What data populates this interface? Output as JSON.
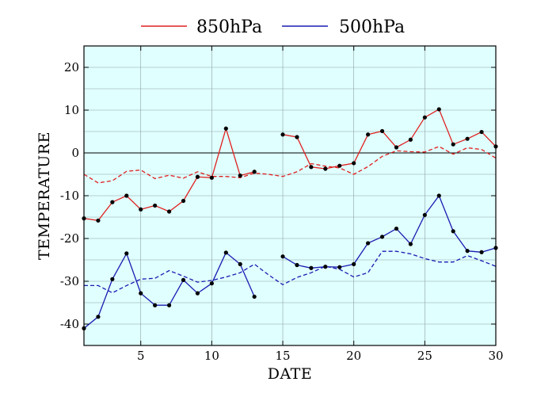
{
  "chart_data": {
    "type": "line",
    "xlabel": "DATE",
    "ylabel": "TEMPERATURE",
    "xlim": [
      1,
      30
    ],
    "ylim": [
      -45,
      25
    ],
    "xticks": [
      5,
      10,
      15,
      20,
      25,
      30
    ],
    "yticks": [
      -40,
      -30,
      -20,
      -10,
      0,
      10,
      20
    ],
    "grid": true,
    "zero_line": true,
    "background_color": "#e0ffff",
    "legend_position": "top-center",
    "x": [
      1,
      2,
      3,
      4,
      5,
      6,
      7,
      8,
      9,
      10,
      11,
      12,
      13,
      14,
      15,
      16,
      17,
      18,
      19,
      20,
      21,
      22,
      23,
      24,
      25,
      26,
      27,
      28,
      29,
      30
    ],
    "series": [
      {
        "name": "850hPa",
        "color": "#e02020",
        "style": "solid",
        "markers": true,
        "values": [
          -15.3,
          -15.8,
          -11.5,
          -10,
          -13.2,
          -12.3,
          -13.7,
          -11.2,
          -5.6,
          -5.8,
          5.7,
          -5.3,
          -4.4,
          null,
          4.3,
          3.7,
          -3.3,
          -3.7,
          -3,
          -2.4,
          4.3,
          5.1,
          1.3,
          3.1,
          8.3,
          10.2,
          2,
          3.3,
          4.9,
          1.5
        ]
      },
      {
        "name": "",
        "color": "#e02020",
        "style": "dashed",
        "markers": false,
        "values": [
          -5,
          -7,
          -6.5,
          -4.3,
          -4,
          -6,
          -5.2,
          -5.9,
          -4.4,
          -5.5,
          -5.5,
          -5.8,
          -4.7,
          -5,
          -5.5,
          -4.4,
          -2.5,
          -3.1,
          -3.5,
          -5,
          -3.2,
          -0.8,
          0.5,
          0.3,
          0.2,
          1.5,
          -0.3,
          1.2,
          0.8,
          -1.2
        ]
      },
      {
        "name": "500hPa",
        "color": "#1a1ab0",
        "style": "solid",
        "markers": true,
        "values": [
          -41,
          -38.3,
          -29.5,
          -23.5,
          -32.8,
          -35.6,
          -35.6,
          -29.7,
          -32.8,
          -30.5,
          -23.3,
          -26,
          -33.6,
          null,
          -24.2,
          -26.2,
          -26.9,
          -26.6,
          -26.7,
          -26,
          -21.1,
          -19.6,
          -17.7,
          -21.3,
          -14.5,
          -10,
          -18.3,
          -22.9,
          -23.2,
          -22.2
        ]
      },
      {
        "name": "",
        "color": "#1a1ab0",
        "style": "dashed",
        "markers": false,
        "values": [
          -31,
          -31,
          -32.7,
          -31,
          -29.5,
          -29.3,
          -27.5,
          -28.8,
          -30.2,
          -29.8,
          -29,
          -28,
          -26,
          -28.5,
          -30.8,
          -29.1,
          -28,
          -26.5,
          -27.2,
          -29,
          -28,
          -23,
          -23,
          -23.6,
          -24.7,
          -25.5,
          -25.5,
          -24,
          -25.2,
          -26.5
        ]
      }
    ]
  }
}
